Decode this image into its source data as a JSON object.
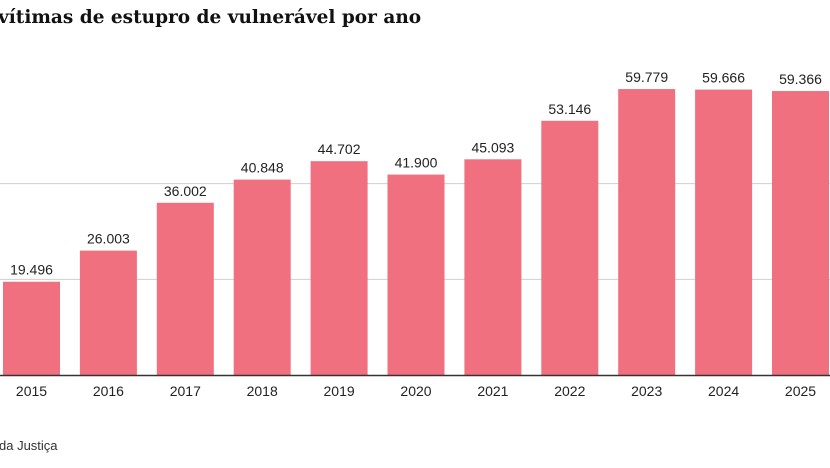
{
  "chart_data": {
    "type": "bar",
    "title": "vítimas de estupro de vulnerável por ano",
    "source": "da Justiça",
    "categories": [
      "2015",
      "2016",
      "2017",
      "2018",
      "2019",
      "2020",
      "2021",
      "2022",
      "2023",
      "2024",
      "2025"
    ],
    "values": [
      19496,
      26003,
      36002,
      40848,
      44702,
      41900,
      45093,
      53146,
      59779,
      59666,
      59366
    ],
    "value_labels": [
      "19.496",
      "26.003",
      "36.002",
      "40.848",
      "44.702",
      "41.900",
      "45.093",
      "53.146",
      "59.779",
      "59.666",
      "59.366"
    ],
    "ylim": [
      0,
      60000
    ],
    "gridlines": [
      20000,
      40000
    ],
    "grid": true,
    "bar_color": "#f07080",
    "grid_color": "#cfcfcf",
    "axis_color": "#333333",
    "xlabel": "",
    "ylabel": ""
  }
}
